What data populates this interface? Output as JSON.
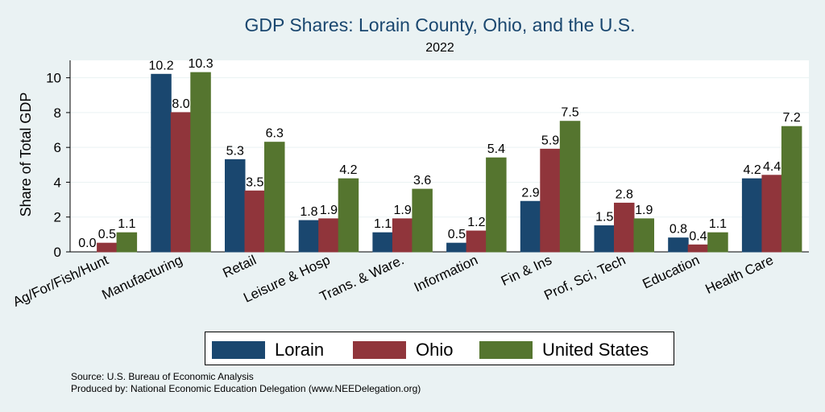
{
  "chart_data": {
    "type": "bar",
    "title": "GDP Shares: Lorain County, Ohio, and the U.S.",
    "subtitle": "2022",
    "ylabel": "Share of Total GDP",
    "xlabel": "",
    "ylim": [
      0,
      11
    ],
    "yticks": [
      0,
      2,
      4,
      6,
      8,
      10
    ],
    "grid": true,
    "legend_position": "bottom",
    "categories": [
      "Ag/For/Fish/Hunt",
      "Manufacturing",
      "Retail",
      "Leisure & Hosp",
      "Trans. & Ware.",
      "Information",
      "Fin & Ins",
      "Prof, Sci, Tech",
      "Education",
      "Health Care"
    ],
    "series": [
      {
        "name": "Lorain",
        "color": "#1a476f",
        "values": [
          0.0,
          10.2,
          5.3,
          1.8,
          1.1,
          0.5,
          2.9,
          1.5,
          0.8,
          4.2
        ],
        "labels": [
          "0.0",
          "10.2",
          "5.3",
          "1.8",
          "1.1",
          "0.5",
          "2.9",
          "1.5",
          "0.8",
          "4.2"
        ]
      },
      {
        "name": "Ohio",
        "color": "#90353b",
        "values": [
          0.5,
          8.0,
          3.5,
          1.9,
          1.9,
          1.2,
          5.9,
          2.8,
          0.4,
          4.4
        ],
        "labels": [
          "0.5",
          "8.0",
          "3.5",
          "1.9",
          "1.9",
          "1.2",
          "5.9",
          "2.8",
          "0.4",
          "4.4"
        ]
      },
      {
        "name": "United States",
        "color": "#55752f",
        "values": [
          1.1,
          10.3,
          6.3,
          4.2,
          3.6,
          5.4,
          7.5,
          1.9,
          1.1,
          7.2
        ],
        "labels": [
          "1.1",
          "10.3",
          "6.3",
          "4.2",
          "3.6",
          "5.4",
          "7.5",
          "1.9",
          "1.1",
          "7.2"
        ]
      }
    ]
  },
  "footer": {
    "source": "Source: U.S. Bureau of Economic Analysis",
    "produced_by": "Produced by: National Economic Education Delegation (www.NEEDelegation.org)"
  }
}
